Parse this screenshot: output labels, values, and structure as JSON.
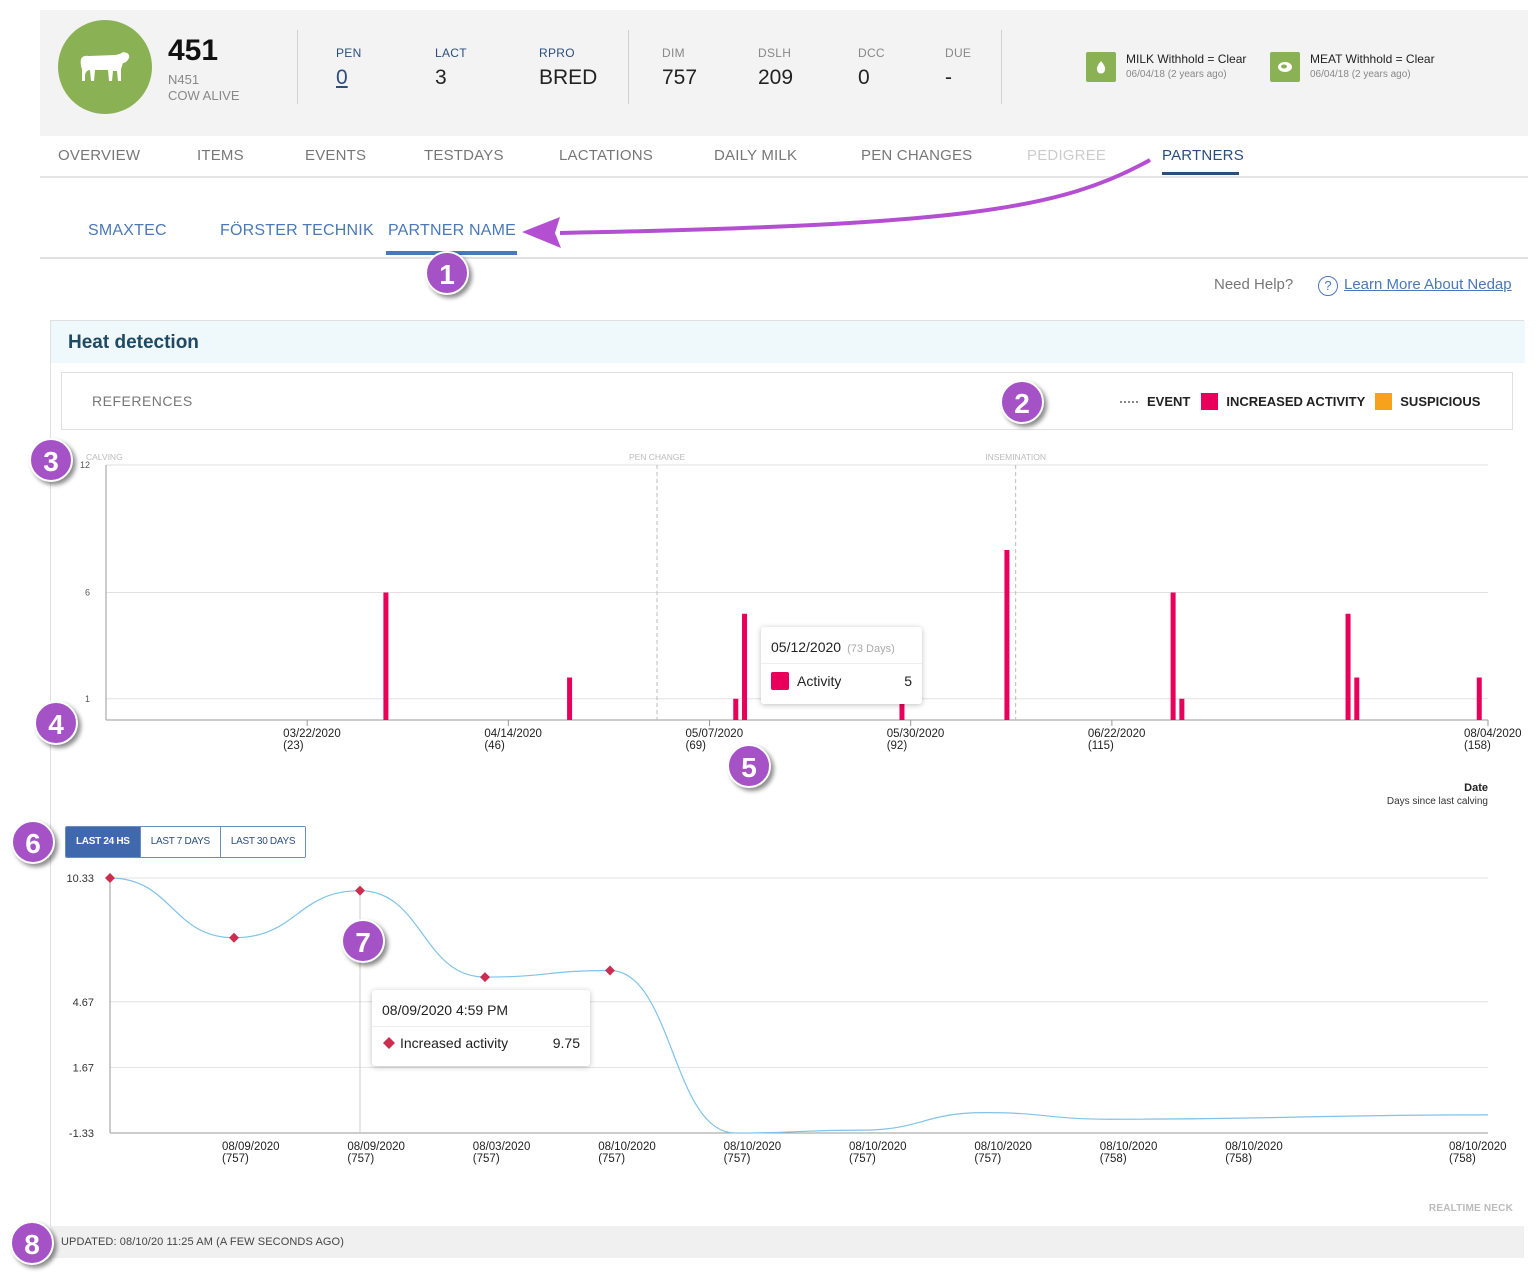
{
  "header": {
    "cow_number": "451",
    "cow_tag": "N451",
    "cow_status": "COW ALIVE",
    "stats": [
      {
        "label": "PEN",
        "value": "0"
      },
      {
        "label": "LACT",
        "value": "3"
      },
      {
        "label": "RPRO",
        "value": "BRED"
      },
      {
        "label": "DIM",
        "value": "757"
      },
      {
        "label": "DSLH",
        "value": "209"
      },
      {
        "label": "DCC",
        "value": "0"
      },
      {
        "label": "DUE",
        "value": "-"
      }
    ],
    "withhold": [
      {
        "title": "MILK Withhold = Clear",
        "sub": "06/04/18 (2 years ago)",
        "icon": "milk-drop-icon"
      },
      {
        "title": "MEAT Withhold = Clear",
        "sub": "06/04/18 (2 years ago)",
        "icon": "meat-icon"
      }
    ],
    "accent": "#8bb155"
  },
  "tabs": [
    "OVERVIEW",
    "ITEMS",
    "EVENTS",
    "TESTDAYS",
    "LACTATIONS",
    "DAILY MILK",
    "PEN CHANGES",
    "PEDIGREE",
    "PARTNERS"
  ],
  "active_tab": "PARTNERS",
  "subtabs": [
    "SMAXTEC",
    "FÖRSTER TECHNIK",
    "PARTNER NAME"
  ],
  "active_subtab": "PARTNER NAME",
  "help": {
    "label": "Need Help?",
    "link": "Learn More About Nedap"
  },
  "panel": {
    "title": "Heat detection",
    "references_label": "REFERENCES",
    "legend": [
      {
        "label": "EVENT",
        "kind": "dotted"
      },
      {
        "label": "INCREASED ACTIVITY",
        "color": "#e8005a"
      },
      {
        "label": "SUSPICIOUS",
        "color": "#f7a21b"
      }
    ],
    "range_buttons": [
      "LAST 24 HS",
      "LAST 7 DAYS",
      "LAST 30 DAYS"
    ],
    "active_range": "LAST 24 HS",
    "source": "REALTIME NECK",
    "updated": "UPDATED: 08/10/20 11:25 AM (A FEW SECONDS AGO)"
  },
  "chart_data": [
    {
      "type": "bar",
      "y_ticks": [
        "12",
        "6",
        "1"
      ],
      "ylim": [
        0,
        12
      ],
      "xlabel": "Date",
      "xlabel_sub": "Days since last calving",
      "x_ticks": [
        {
          "date": "03/22/2020",
          "days": "(23)"
        },
        {
          "date": "04/14/2020",
          "days": "(46)"
        },
        {
          "date": "05/07/2020",
          "days": "(69)"
        },
        {
          "date": "05/30/2020",
          "days": "(92)"
        },
        {
          "date": "06/22/2020",
          "days": "(115)"
        },
        {
          "date": "08/04/2020",
          "days": "(158)"
        }
      ],
      "events": [
        {
          "label": "CALVING",
          "day": 0
        },
        {
          "label": "PEN CHANGE",
          "day": 63
        },
        {
          "label": "INSEMINATION",
          "day": 104
        }
      ],
      "bars": [
        {
          "day": 32,
          "value": 6
        },
        {
          "day": 53,
          "value": 2
        },
        {
          "day": 72,
          "value": 1
        },
        {
          "day": 73,
          "value": 5
        },
        {
          "day": 91,
          "value": 1
        },
        {
          "day": 103,
          "value": 8
        },
        {
          "day": 122,
          "value": 6
        },
        {
          "day": 123,
          "value": 1
        },
        {
          "day": 142,
          "value": 5
        },
        {
          "day": 143,
          "value": 2
        },
        {
          "day": 157,
          "value": 2
        }
      ],
      "bar_color": "#e8005a",
      "tooltip": {
        "date": "05/12/2020",
        "muted": "(73 Days)",
        "label": "Activity",
        "value": "5"
      }
    },
    {
      "type": "line",
      "y_ticks": [
        "10.33",
        "4.67",
        "1.67",
        "-1.33"
      ],
      "ylim": [
        -1.33,
        10.33
      ],
      "x_ticks": [
        {
          "date": "08/09/2020",
          "days": "(757)"
        },
        {
          "date": "08/09/2020",
          "days": "(757)"
        },
        {
          "date": "08/03/2020",
          "days": "(757)"
        },
        {
          "date": "08/10/2020",
          "days": "(757)"
        },
        {
          "date": "08/10/2020",
          "days": "(757)"
        },
        {
          "date": "08/10/2020",
          "days": "(757)"
        },
        {
          "date": "08/10/2020",
          "days": "(757)"
        },
        {
          "date": "08/10/2020",
          "days": "(758)"
        },
        {
          "date": "08/10/2020",
          "days": "(758)"
        },
        {
          "date": "08/10/2020",
          "days": "(758)"
        }
      ],
      "points": [
        10.33,
        7.6,
        9.75,
        5.8,
        6.1,
        -1.33,
        -1.2,
        -0.4,
        -0.7,
        -0.5
      ],
      "marked": [
        true,
        true,
        true,
        true,
        true,
        false,
        false,
        false,
        false,
        false
      ],
      "line_color": "#7fc3e8",
      "marker_color": "#cc2e50",
      "tooltip": {
        "date": "08/09/2020 4:59 PM",
        "label": "Increased activity",
        "value": "9.75"
      }
    }
  ],
  "annotations": [
    "1",
    "2",
    "3",
    "4",
    "5",
    "6",
    "7",
    "8"
  ]
}
